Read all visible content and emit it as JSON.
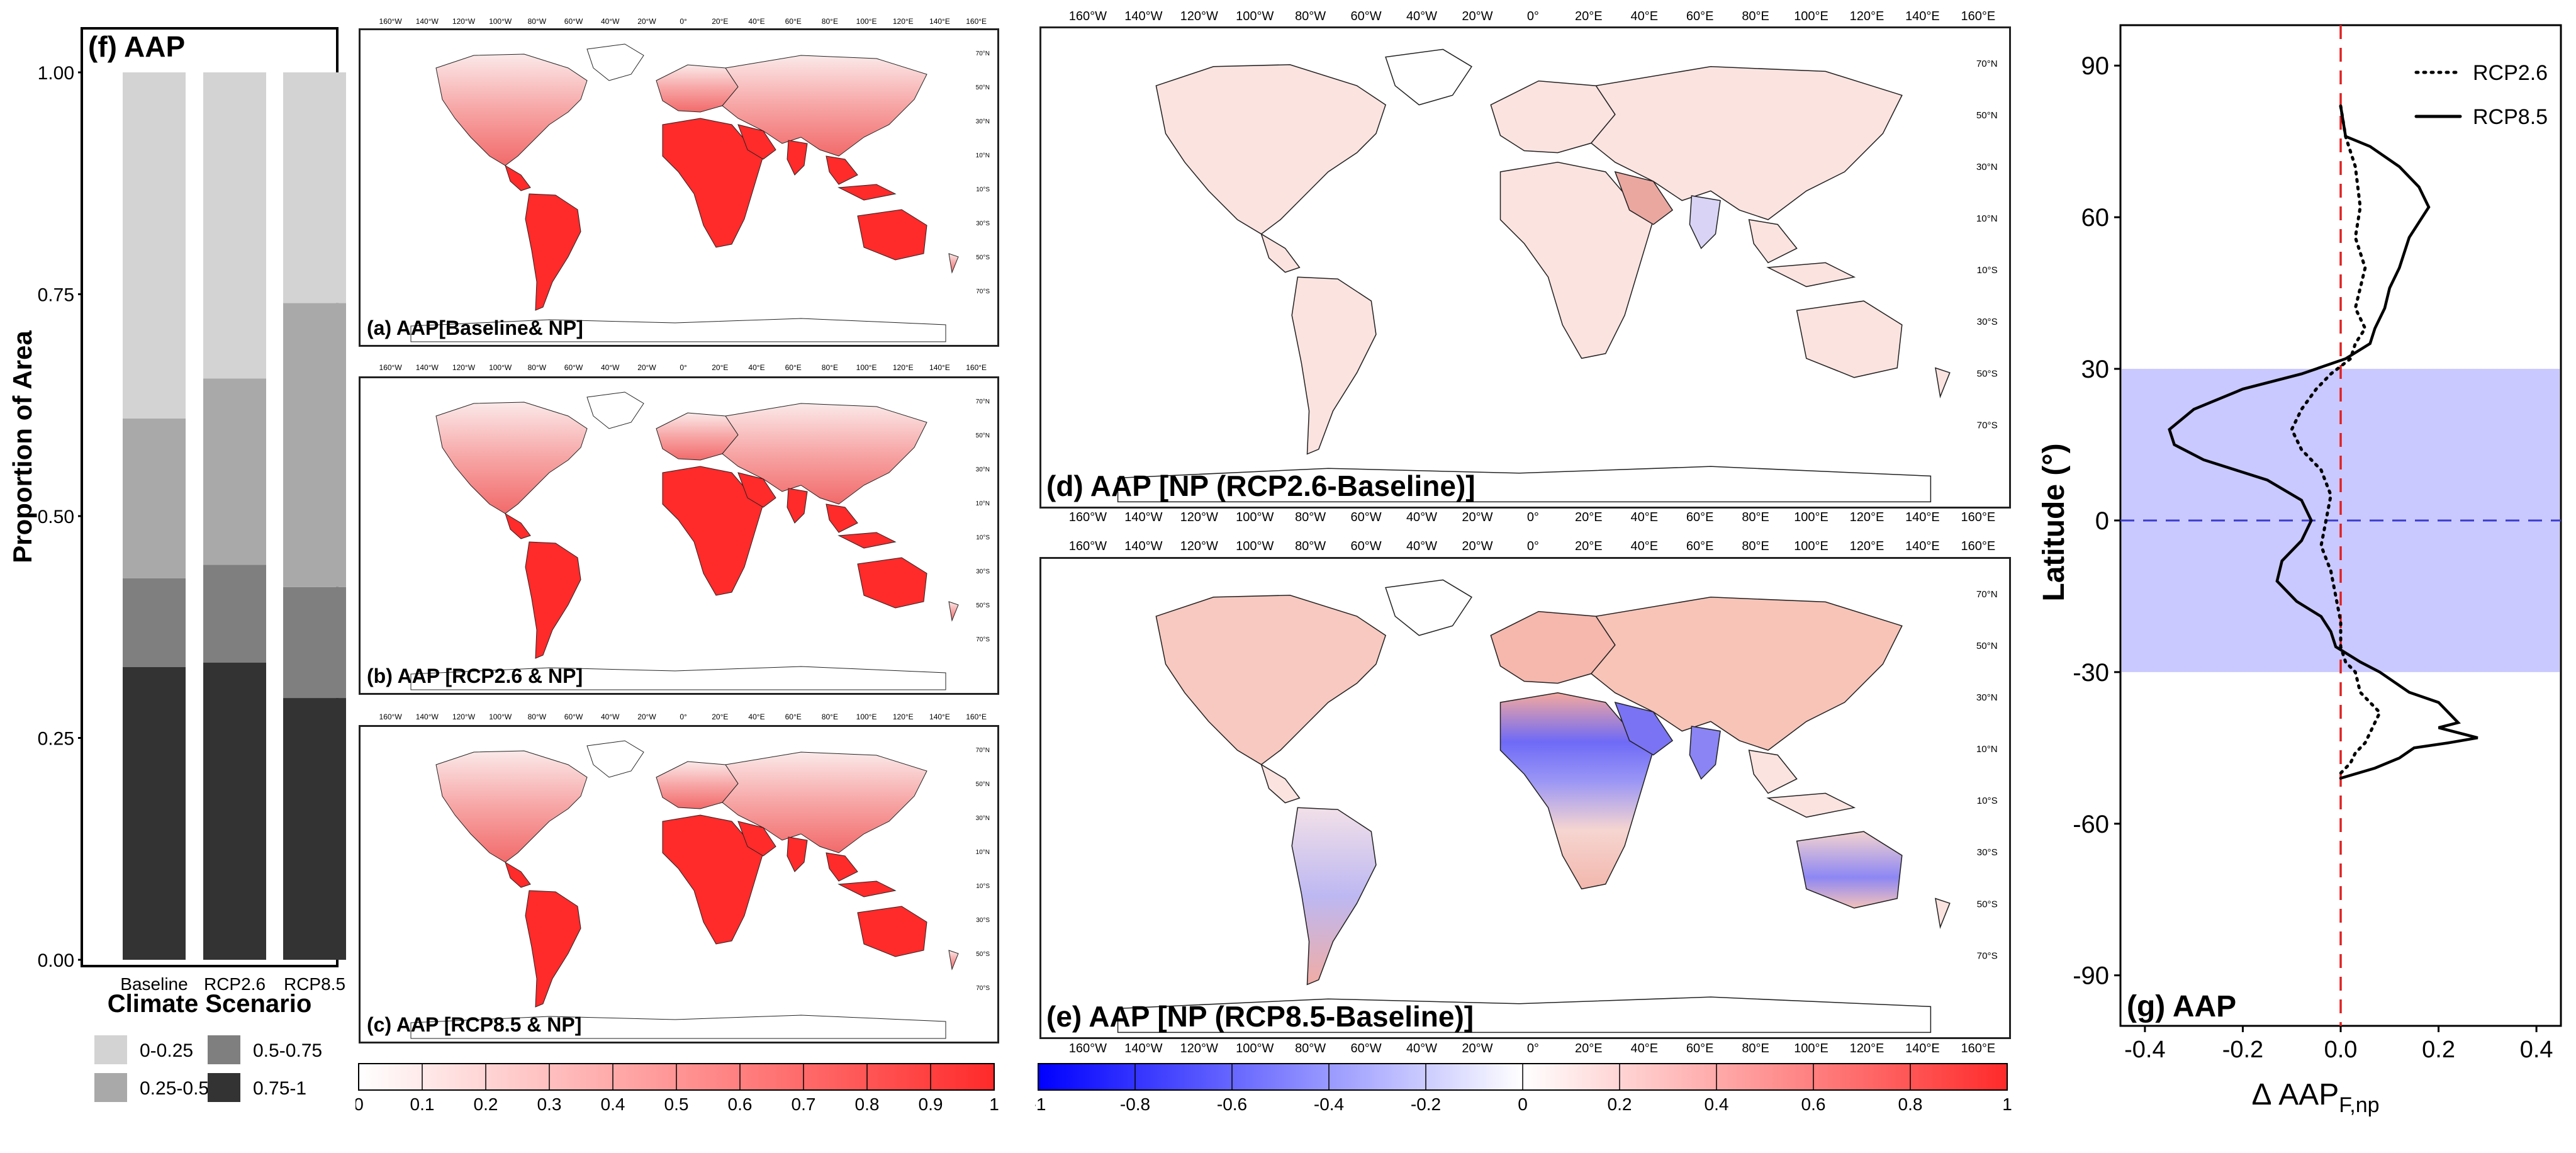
{
  "panel_f": {
    "title": "(f) AAP",
    "ylabel": "Proportion of Area",
    "xlabel": "Climate Scenario",
    "yticks": [
      "0.00",
      "0.25",
      "0.50",
      "0.75",
      "1.00"
    ],
    "legend": [
      {
        "label": "0-0.25",
        "color": "#d3d3d3"
      },
      {
        "label": "0.25-0.5",
        "color": "#a9a9a9"
      },
      {
        "label": "0.5-0.75",
        "color": "#7f7f7f"
      },
      {
        "label": "0.75-1",
        "color": "#333333"
      }
    ]
  },
  "chart_data": [
    {
      "type": "bar",
      "stacked": true,
      "title": "(f) AAP",
      "xlabel": "Climate Scenario",
      "ylabel": "Proportion of Area",
      "ylim": [
        0,
        1
      ],
      "categories": [
        "Baseline",
        "RCP2.6",
        "RCP8.5"
      ],
      "series": [
        {
          "name": "0.75-1",
          "values": [
            0.33,
            0.335,
            0.295
          ]
        },
        {
          "name": "0.5-0.75",
          "values": [
            0.1,
            0.11,
            0.125
          ]
        },
        {
          "name": "0.25-0.5",
          "values": [
            0.18,
            0.21,
            0.32
          ]
        },
        {
          "name": "0-0.25",
          "values": [
            0.39,
            0.345,
            0.26
          ]
        }
      ]
    },
    {
      "type": "line",
      "title": "(g) AAP",
      "xlabel": "Δ AAP F,np",
      "ylabel": "Latitude (°)",
      "xlim": [
        -0.45,
        0.45
      ],
      "ylim": [
        -100,
        98
      ],
      "xticks": [
        "-0.4",
        "-0.2",
        "0.0",
        "0.2",
        "0.4"
      ],
      "yticks": [
        "90",
        "60",
        "30",
        "0",
        "-30",
        "-60",
        "-90"
      ],
      "shaded_band": [
        -30,
        30
      ],
      "series": [
        {
          "name": "RCP2.6",
          "style": "dotted",
          "points": [
            [
              0.0,
              82
            ],
            [
              0.01,
              76
            ],
            [
              0.03,
              70
            ],
            [
              0.04,
              62
            ],
            [
              0.03,
              56
            ],
            [
              0.05,
              50
            ],
            [
              0.04,
              46
            ],
            [
              0.03,
              42
            ],
            [
              0.05,
              38
            ],
            [
              0.03,
              35
            ],
            [
              0.02,
              32
            ],
            [
              -0.02,
              29
            ],
            [
              -0.05,
              26
            ],
            [
              -0.08,
              22
            ],
            [
              -0.1,
              18
            ],
            [
              -0.08,
              14
            ],
            [
              -0.04,
              10
            ],
            [
              -0.02,
              5
            ],
            [
              -0.03,
              0
            ],
            [
              -0.04,
              -5
            ],
            [
              -0.02,
              -10
            ],
            [
              -0.01,
              -15
            ],
            [
              0.0,
              -20
            ],
            [
              0.0,
              -25
            ],
            [
              0.01,
              -28
            ],
            [
              0.03,
              -30
            ],
            [
              0.04,
              -34
            ],
            [
              0.06,
              -36
            ],
            [
              0.08,
              -38
            ],
            [
              0.07,
              -40
            ],
            [
              0.06,
              -42
            ],
            [
              0.05,
              -44
            ],
            [
              0.03,
              -46
            ],
            [
              0.02,
              -48
            ],
            [
              0.0,
              -50
            ]
          ]
        },
        {
          "name": "RCP8.5",
          "style": "solid",
          "points": [
            [
              0.0,
              82
            ],
            [
              0.01,
              76
            ],
            [
              0.06,
              74
            ],
            [
              0.12,
              70
            ],
            [
              0.16,
              66
            ],
            [
              0.18,
              62
            ],
            [
              0.14,
              56
            ],
            [
              0.12,
              50
            ],
            [
              0.1,
              46
            ],
            [
              0.09,
              42
            ],
            [
              0.07,
              38
            ],
            [
              0.06,
              35
            ],
            [
              0.01,
              32
            ],
            [
              -0.08,
              29
            ],
            [
              -0.2,
              26
            ],
            [
              -0.3,
              22
            ],
            [
              -0.35,
              18
            ],
            [
              -0.34,
              15
            ],
            [
              -0.28,
              12
            ],
            [
              -0.15,
              8
            ],
            [
              -0.08,
              4
            ],
            [
              -0.06,
              0
            ],
            [
              -0.08,
              -4
            ],
            [
              -0.12,
              -8
            ],
            [
              -0.13,
              -12
            ],
            [
              -0.09,
              -16
            ],
            [
              -0.04,
              -19
            ],
            [
              -0.02,
              -22
            ],
            [
              -0.01,
              -25
            ],
            [
              0.04,
              -28
            ],
            [
              0.08,
              -30
            ],
            [
              0.14,
              -34
            ],
            [
              0.2,
              -36
            ],
            [
              0.22,
              -38
            ],
            [
              0.24,
              -40
            ],
            [
              0.2,
              -41
            ],
            [
              0.28,
              -43
            ],
            [
              0.22,
              -44
            ],
            [
              0.15,
              -45
            ],
            [
              0.12,
              -47
            ],
            [
              0.07,
              -49
            ],
            [
              0.0,
              -51
            ]
          ]
        }
      ]
    }
  ],
  "maps": {
    "a_label": "(a) AAP[Baseline& NP]",
    "b_label": "(b) AAP [RCP2.6 & NP]",
    "c_label": "(c) AAP [RCP8.5 & NP]",
    "d_label": "(d) AAP [NP (RCP2.6-Baseline)]",
    "e_label": "(e) AAP [NP (RCP8.5-Baseline)]",
    "lon_ticks": [
      "160°W",
      "140°W",
      "120°W",
      "100°W",
      "80°W",
      "60°W",
      "40°W",
      "20°W",
      "0°",
      "20°E",
      "40°E",
      "60°E",
      "80°E",
      "100°E",
      "120°E",
      "140°E",
      "160°E"
    ],
    "lat_ticks": [
      "70°N",
      "50°N",
      "30°N",
      "10°N",
      "10°S",
      "30°S",
      "50°S",
      "70°S"
    ],
    "colors": {
      "red": "#ff2a2a",
      "blue": "#3b3bff",
      "white": "#ffffff"
    }
  },
  "colorbar_left": {
    "ticks": [
      "0",
      "0.1",
      "0.2",
      "0.3",
      "0.4",
      "0.5",
      "0.6",
      "0.7",
      "0.8",
      "0.9",
      "1"
    ]
  },
  "colorbar_right": {
    "ticks": [
      "-1",
      "-0.8",
      "-0.6",
      "-0.4",
      "-0.2",
      "0",
      "0.2",
      "0.4",
      "0.6",
      "0.8",
      "1"
    ]
  },
  "panel_g": {
    "title": "(g) AAP",
    "ylabel": "Latitude (°)",
    "xlabel_main": "Δ AAP",
    "xlabel_sub": "F,np",
    "legend": [
      {
        "label": "RCP2.6",
        "style": "dotted"
      },
      {
        "label": "RCP8.5",
        "style": "solid"
      }
    ]
  }
}
